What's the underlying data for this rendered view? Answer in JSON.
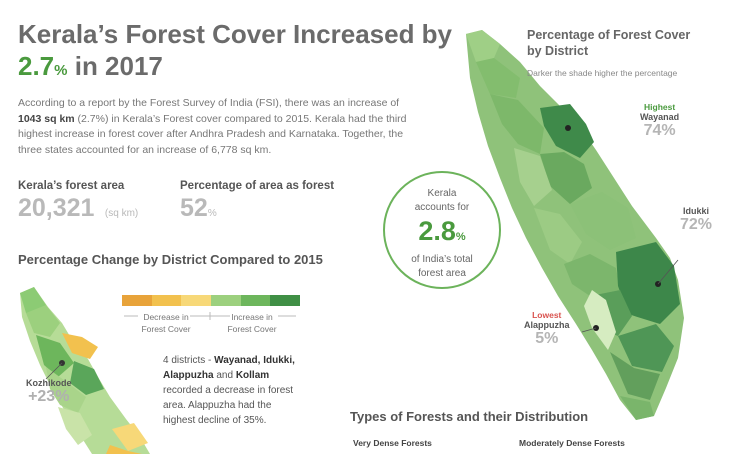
{
  "header": {
    "title_line1": "Kerala’s Forest Cover Increased by",
    "title_pct": "2.7",
    "title_pct_sign": "%",
    "title_year": " in 2017"
  },
  "intro": {
    "part1": "According to a report by the Forest Survey of India (FSI), there was an increase of ",
    "bold": "1043 sq km",
    "part2": " (2.7%) in Kerala’s Forest cover compared to 2015. Kerala had the third highest increase in forest cover after Andhra Pradesh and Karnataka. Together, the three states accounted for an increase of 6,778 sq km."
  },
  "stats": {
    "area_label": "Kerala’s forest area",
    "area_value": "20,321",
    "area_unit": "(sq km)",
    "pct_label": "Percentage of area as forest",
    "pct_value": "52",
    "pct_unit": "%"
  },
  "change_section": {
    "title": "Percentage Change by District Compared to 2015",
    "legend_decrease": "Decrease in",
    "legend_decrease2": "Forest Cover",
    "legend_increase": "Increase in",
    "legend_increase2": "Forest Cover",
    "legend_colors": [
      "#e8a33a",
      "#f2c14e",
      "#f7d878",
      "#9cd07e",
      "#6db65c",
      "#3f8f45"
    ],
    "callout_name": "Kozhikode",
    "callout_value": "+23%",
    "note_p1": "4 districts - ",
    "note_b1": "Wayanad, Idukki, Alappuzha",
    "note_p2": " and ",
    "note_b2": "Kollam",
    "note_p3": " recorded a decrease in forest area. Alappuzha had the highest decline of 35%."
  },
  "circle": {
    "line1": "Kerala",
    "line2": "accounts for",
    "value": "2.8",
    "unit": "%",
    "line3": "of India’s total",
    "line4": "forest area"
  },
  "district_map": {
    "title_line1": "Percentage of Forest Cover",
    "title_line2": "by District",
    "subtitle": "Darker the shade higher the percentage",
    "highest_label": "Highest",
    "highest_name": "Wayanad",
    "highest_value": "74%",
    "idukki_name": "Idukki",
    "idukki_value": "72%",
    "lowest_label": "Lowest",
    "lowest_name": "Alappuzha",
    "lowest_value": "5%",
    "highest_color": "#4a9a3e",
    "lowest_color": "#d9534f"
  },
  "types": {
    "title": "Types of Forests and their Distribution",
    "col1": "Very Dense Forests",
    "col2": "Moderately Dense Forests"
  }
}
